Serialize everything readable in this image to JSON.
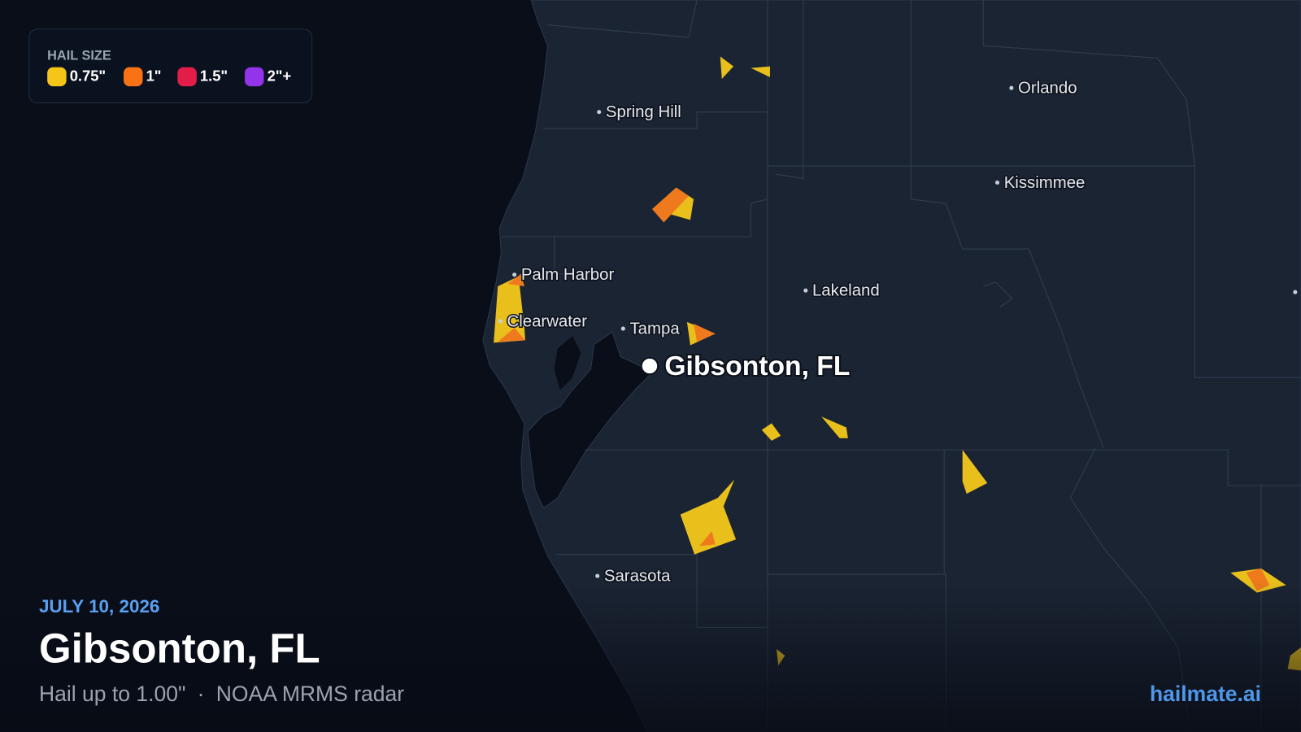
{
  "legend": {
    "title": "HAIL SIZE",
    "items": [
      {
        "label": "0.75\"",
        "color": "#f5c518"
      },
      {
        "label": "1\"",
        "color": "#f97316"
      },
      {
        "label": "1.5\"",
        "color": "#e11d48"
      },
      {
        "label": "2\"+",
        "color": "#9333ea"
      }
    ]
  },
  "cities": [
    "Spring Hill",
    "Orlando",
    "Kissimmee",
    "Palm Harbor",
    "Lakeland",
    "Clearwater",
    "Tampa",
    "Sarasota"
  ],
  "location": {
    "label": "Gibsonton, FL"
  },
  "footer": {
    "date": "JULY 10, 2026",
    "title": "Gibsonton, FL",
    "subtitle": [
      "Hail up to 1.00\"",
      "NOAA MRMS radar"
    ],
    "separator": "·",
    "brand": "hailmate.ai"
  }
}
